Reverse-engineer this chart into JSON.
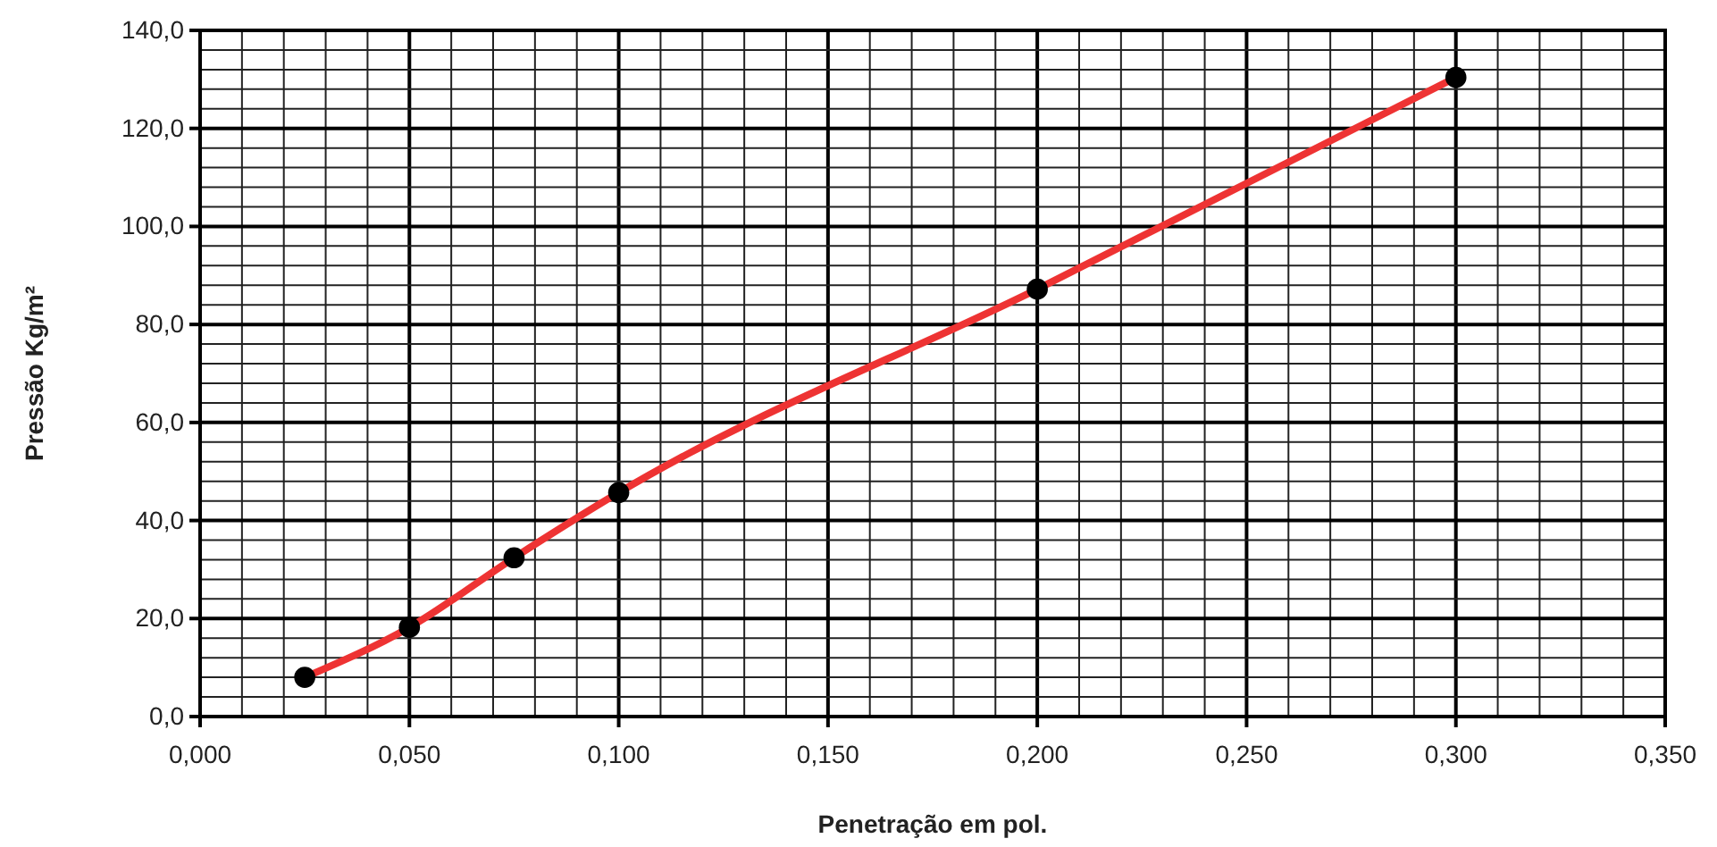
{
  "chart_data": {
    "type": "line",
    "xlabel": "Penetração em pol.",
    "ylabel": "Pressão Kg/m²",
    "x": [
      0.025,
      0.05,
      0.075,
      0.1,
      0.2,
      0.3
    ],
    "series": [
      {
        "color": "#ee3333",
        "values": [
          8,
          18.2,
          32.4,
          45.7,
          87.2,
          130.4
        ]
      }
    ],
    "xlim": [
      0,
      0.35
    ],
    "xticks": [
      {
        "value": 0,
        "label": "0,000"
      },
      {
        "value": 0.05,
        "label": "0,050"
      },
      {
        "value": 0.1,
        "label": "0,100"
      },
      {
        "value": 0.15,
        "label": "0,150"
      },
      {
        "value": 0.2,
        "label": "0,200"
      },
      {
        "value": 0.25,
        "label": "0,250"
      },
      {
        "value": 0.3,
        "label": "0,300"
      },
      {
        "value": 0.35,
        "label": "0,350"
      }
    ],
    "ylim": [
      0,
      140
    ],
    "yticks": [
      {
        "value": 0,
        "label": "0,0"
      },
      {
        "value": 20,
        "label": "20,0"
      },
      {
        "value": 40,
        "label": "40,0"
      },
      {
        "value": 60,
        "label": "60,0"
      },
      {
        "value": 80,
        "label": "80,0"
      },
      {
        "value": 100,
        "label": "100,0"
      },
      {
        "value": 120,
        "label": "120,0"
      },
      {
        "value": 140,
        "label": "140,0"
      }
    ],
    "grid": true,
    "marker": "circle",
    "line_style": "solid"
  }
}
